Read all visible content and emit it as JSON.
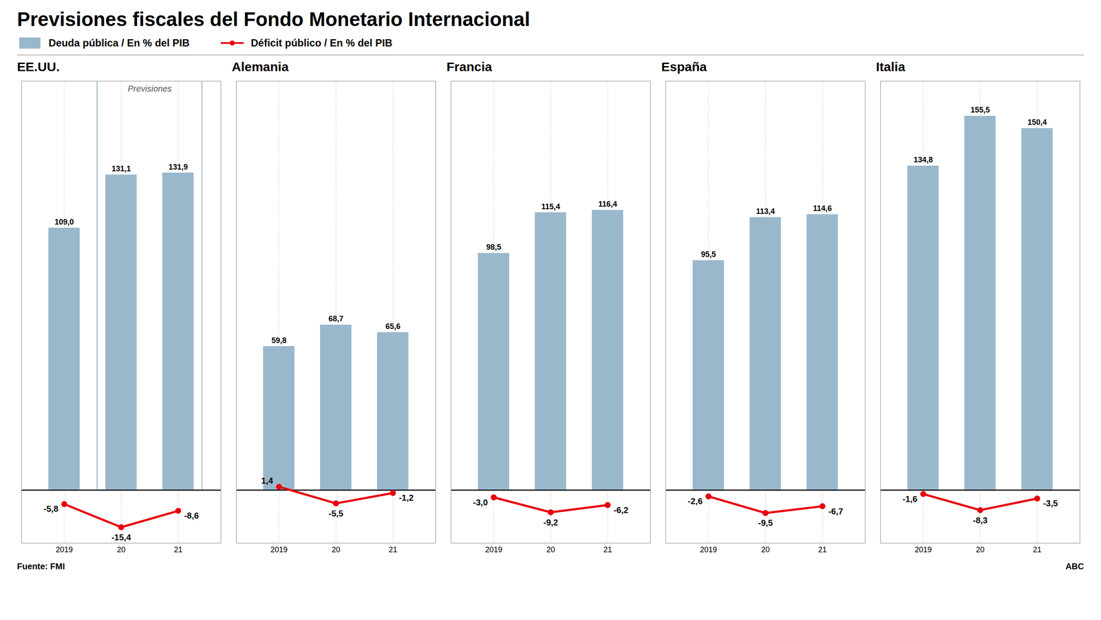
{
  "title": "Previsiones fiscales del Fondo Monetario Internacional",
  "annotations": [
    "Fuente: FMI",
    "ABC"
  ],
  "chart_data": [
    {
      "type": "bar",
      "title": "EE.UU.",
      "categories": [
        "2019",
        "20",
        "21"
      ],
      "series": [
        {
          "name": "Deuda pública / En % del PIB",
          "type": "bar",
          "color": "#9ab8cc",
          "values": [
            109.0,
            131.1,
            131.9
          ],
          "value_labels": [
            "109,0",
            "131,1",
            "131,9"
          ]
        },
        {
          "name": "Déficit público / En % del PIB",
          "type": "line",
          "color": "#e8000d",
          "marker": "o",
          "values": [
            -5.8,
            -15.4,
            -8.6
          ],
          "value_labels": [
            "-5,8",
            "-15,4",
            "-8,6"
          ]
        }
      ],
      "ylim": [
        -22,
        170
      ],
      "tick_labels": "x",
      "grid": "x",
      "data_labels": true,
      "annotations": [
        "Previsiones"
      ]
    },
    {
      "type": "bar",
      "title": "Alemania",
      "categories": [
        "2019",
        "20",
        "21"
      ],
      "series": [
        {
          "name": "Deuda pública / En % del PIB",
          "type": "bar",
          "color": "#9ab8cc",
          "values": [
            59.8,
            68.7,
            65.6
          ],
          "value_labels": [
            "59,8",
            "68,7",
            "65,6"
          ]
        },
        {
          "name": "Déficit público / En % del PIB",
          "type": "line",
          "color": "#e8000d",
          "marker": "o",
          "values": [
            1.4,
            -5.5,
            -1.2
          ],
          "value_labels": [
            "1,4",
            "-5,5",
            "-1,2"
          ]
        }
      ],
      "ylim": [
        -22,
        170
      ],
      "tick_labels": "x",
      "grid": "x",
      "data_labels": true
    },
    {
      "type": "bar",
      "title": "Francia",
      "categories": [
        "2019",
        "20",
        "21"
      ],
      "series": [
        {
          "name": "Deuda pública / En % del PIB",
          "type": "bar",
          "color": "#9ab8cc",
          "values": [
            98.5,
            115.4,
            116.4
          ],
          "value_labels": [
            "98,5",
            "115,4",
            "116,4"
          ]
        },
        {
          "name": "Déficit público / En % del PIB",
          "type": "line",
          "color": "#e8000d",
          "marker": "o",
          "values": [
            -3.0,
            -9.2,
            -6.2
          ],
          "value_labels": [
            "-3,0",
            "-9,2",
            "-6,2"
          ]
        }
      ],
      "ylim": [
        -22,
        170
      ],
      "tick_labels": "x",
      "grid": "x",
      "data_labels": true
    },
    {
      "type": "bar",
      "title": "España",
      "categories": [
        "2019",
        "20",
        "21"
      ],
      "series": [
        {
          "name": "Deuda pública / En % del PIB",
          "type": "bar",
          "color": "#9ab8cc",
          "values": [
            95.5,
            113.4,
            114.6
          ],
          "value_labels": [
            "95,5",
            "113,4",
            "114,6"
          ]
        },
        {
          "name": "Déficit público / En % del PIB",
          "type": "line",
          "color": "#e8000d",
          "marker": "o",
          "values": [
            -2.6,
            -9.5,
            -6.7
          ],
          "value_labels": [
            "-2,6",
            "-9,5",
            "-6,7"
          ]
        }
      ],
      "ylim": [
        -22,
        170
      ],
      "tick_labels": "x",
      "grid": "x",
      "data_labels": true
    },
    {
      "type": "bar",
      "title": "Italia",
      "categories": [
        "2019",
        "20",
        "21"
      ],
      "series": [
        {
          "name": "Deuda pública / En % del PIB",
          "type": "bar",
          "color": "#9ab8cc",
          "values": [
            134.8,
            155.5,
            150.4
          ],
          "value_labels": [
            "134,8",
            "155,5",
            "150,4"
          ]
        },
        {
          "name": "Déficit público / En % del PIB",
          "type": "line",
          "color": "#e8000d",
          "marker": "o",
          "values": [
            -1.6,
            -8.3,
            -3.5
          ],
          "value_labels": [
            "-1,6",
            "-8,3",
            "-3,5"
          ]
        }
      ],
      "ylim": [
        -22,
        170
      ],
      "tick_labels": "x",
      "grid": "x",
      "data_labels": true
    }
  ]
}
